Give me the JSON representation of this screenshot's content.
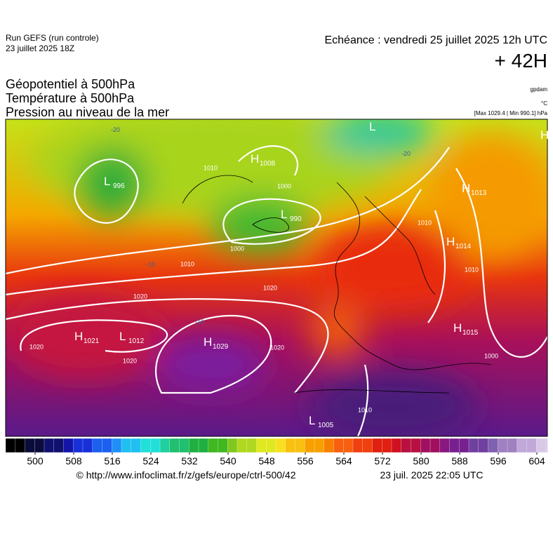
{
  "header": {
    "run": "Run GEFS (run controle)",
    "run_date": "23 juillet 2025 18Z",
    "echeance": "Echéance : vendredi 25 juillet 2025 12h UTC",
    "lead": "+ 42H"
  },
  "titles": [
    "Géopotentiel à 500hPa",
    "Température à 500hPa",
    "Pression au niveau de la mer"
  ],
  "units": {
    "geopotential": "gpdam",
    "temperature": "°C",
    "pressure_range": "[Max 1029.4 | Min 990.1] hPa"
  },
  "pressure_centers": [
    {
      "type": "L",
      "value": "996"
    },
    {
      "type": "H",
      "value": "1008"
    },
    {
      "type": "L",
      "value": "990"
    },
    {
      "type": "L",
      "value": null
    },
    {
      "type": "H",
      "value": null
    },
    {
      "type": "H",
      "value": "1013"
    },
    {
      "type": "H",
      "value": "1014"
    },
    {
      "type": "H",
      "value": "1015"
    },
    {
      "type": "H",
      "value": "1021"
    },
    {
      "type": "L",
      "value": "1012"
    },
    {
      "type": "H",
      "value": "1029"
    },
    {
      "type": "L",
      "value": "1005"
    }
  ],
  "isobar_labels": [
    "1000",
    "1000",
    "1010",
    "1020",
    "1020",
    "1020",
    "1020",
    "1020",
    "1010",
    "1010",
    "1010",
    "1000",
    "1010"
  ],
  "temperature_labels": [
    "-20",
    "-20",
    "-10",
    "-10"
  ],
  "colorbar": {
    "ticks": [
      500,
      508,
      516,
      524,
      532,
      540,
      548,
      556,
      564,
      572,
      580,
      588,
      596,
      604
    ]
  },
  "footer": {
    "source": "© http://www.infoclimat.fr/z/gefs/europe/ctrl-500/42",
    "timestamp": "23 juil. 2025 22:05 UTC"
  }
}
